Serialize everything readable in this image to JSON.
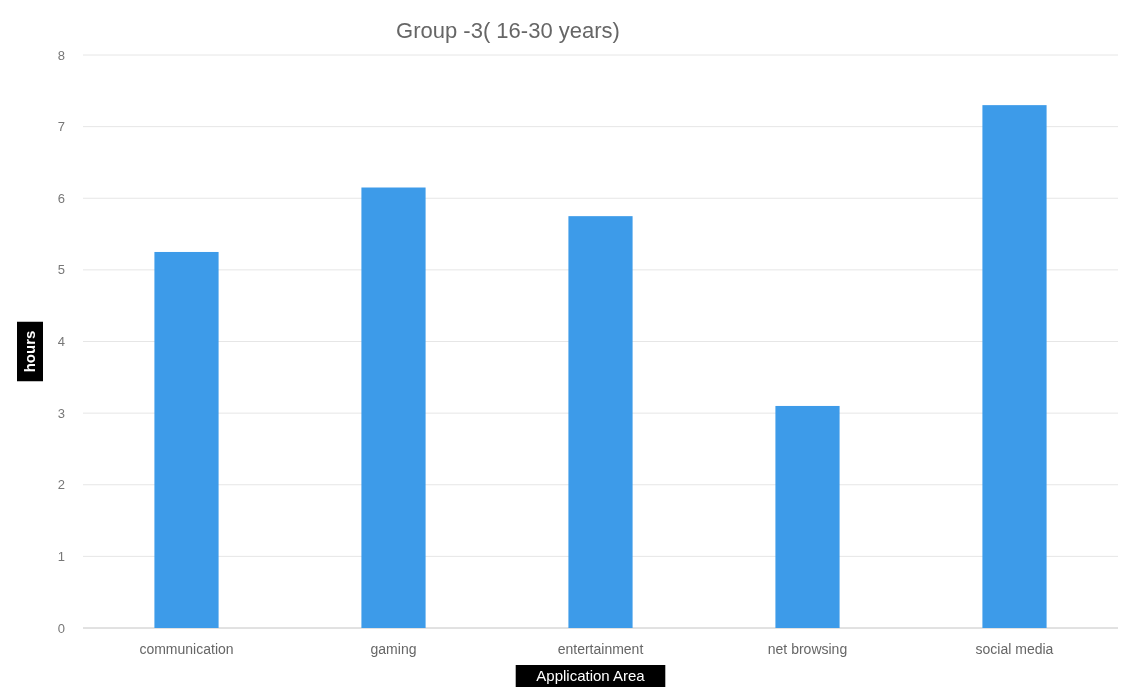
{
  "chart_data": {
    "type": "bar",
    "title": "Group -3( 16-30 years)",
    "xlabel": "Application Area",
    "ylabel": "hours",
    "categories": [
      "communication",
      "gaming",
      "entertainment",
      "net browsing",
      "social media"
    ],
    "values": [
      5.25,
      6.15,
      5.75,
      3.1,
      7.3
    ],
    "color": "#3d9be9",
    "ylim": [
      0,
      8
    ],
    "yticks": [
      0,
      1,
      2,
      3,
      4,
      5,
      6,
      7,
      8
    ],
    "grid": "y"
  }
}
